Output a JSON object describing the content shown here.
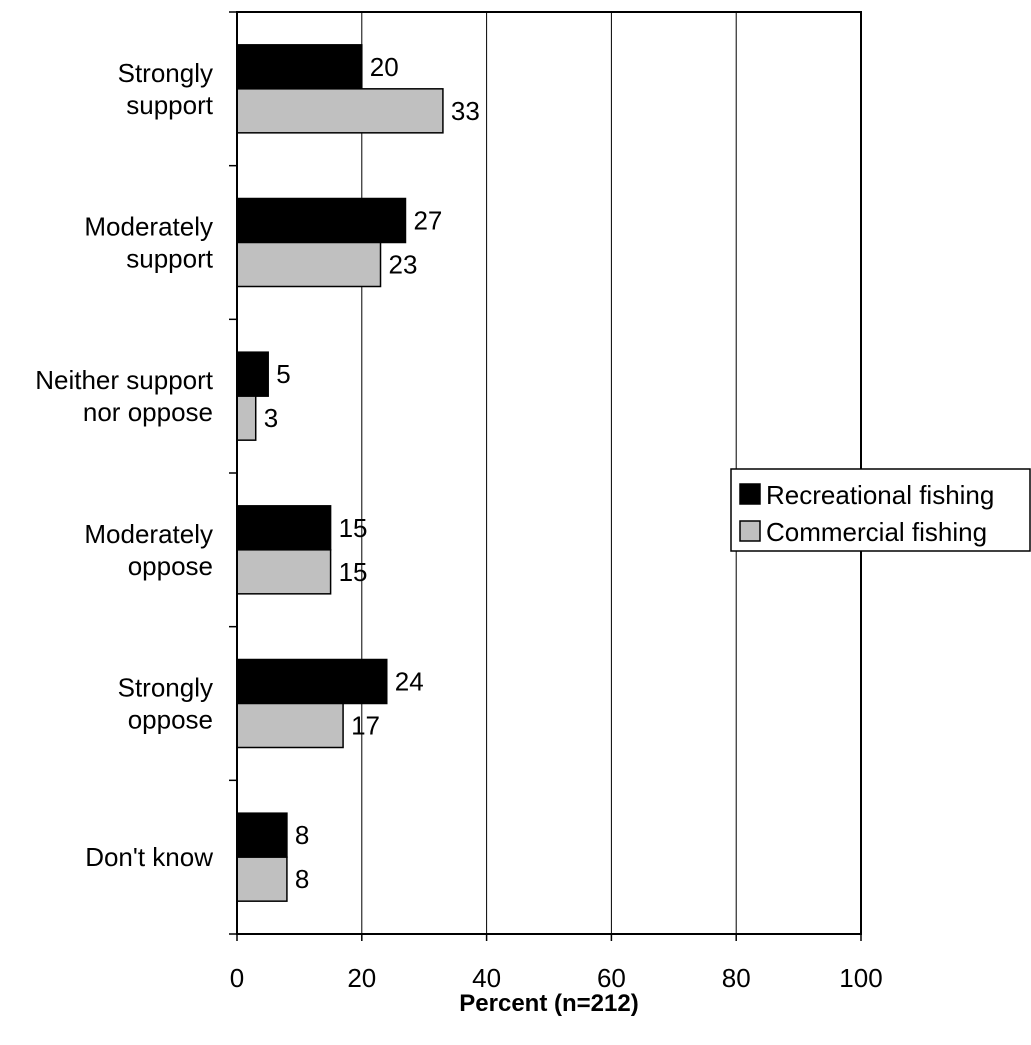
{
  "chart_data": {
    "type": "bar",
    "orientation": "horizontal",
    "title": "",
    "xlabel": "Percent (n=212)",
    "ylabel": "",
    "xlim": [
      0,
      100
    ],
    "xticks": [
      0,
      20,
      40,
      60,
      80,
      100
    ],
    "grid": "vertical",
    "legend_position": "right",
    "categories": [
      [
        "Strongly",
        "support"
      ],
      [
        "Moderately",
        "support"
      ],
      [
        "Neither support",
        "nor oppose"
      ],
      [
        "Moderately",
        "oppose"
      ],
      [
        "Strongly",
        "oppose"
      ],
      [
        "Don't know"
      ]
    ],
    "series": [
      {
        "name": "Recreational fishing",
        "color": "#000000",
        "values": [
          20,
          27,
          5,
          15,
          24,
          8
        ]
      },
      {
        "name": "Commercial fishing",
        "color": "#c0c0c0",
        "values": [
          33,
          23,
          3,
          15,
          17,
          8
        ]
      }
    ]
  }
}
